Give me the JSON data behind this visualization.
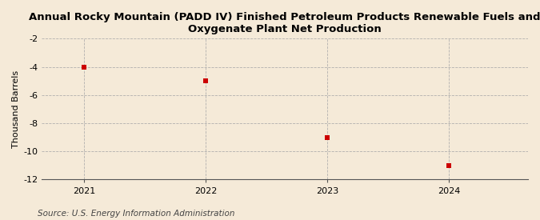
{
  "title": "Annual Rocky Mountain (PADD IV) Finished Petroleum Products Renewable Fuels and\nOxygenate Plant Net Production",
  "ylabel": "Thousand Barrels",
  "source": "Source: U.S. Energy Information Administration",
  "x": [
    2021,
    2022,
    2023,
    2024
  ],
  "y": [
    -4.0,
    -5.0,
    -9.0,
    -11.0
  ],
  "ylim": [
    -12,
    -2
  ],
  "yticks": [
    -12,
    -10,
    -8,
    -6,
    -4,
    -2
  ],
  "xlim": [
    2020.65,
    2024.65
  ],
  "xticks": [
    2021,
    2022,
    2023,
    2024
  ],
  "marker_color": "#cc0000",
  "marker": "s",
  "marker_size": 4,
  "bg_color": "#f5ead8",
  "grid_color": "#aaaaaa",
  "title_fontsize": 9.5,
  "axis_label_fontsize": 8,
  "tick_fontsize": 8,
  "source_fontsize": 7.5
}
